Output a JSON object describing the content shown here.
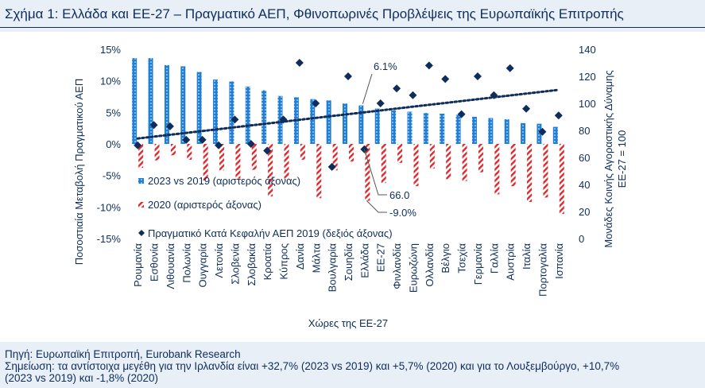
{
  "title": "Σχήμα 1: Ελλάδα και ΕΕ-27 – Πραγματικό ΑΕΠ, Φθινοπωρινές Προβλέψεις της Ευρωπαϊκής Επιτροπής",
  "footer": {
    "source": "Πηγή: Ευρωπαϊκή Επιτροπή, Eurobank Research",
    "note_line1": "Σημείωση: τα αντίστοιχα μεγέθη για την Ιρλανδία είναι +32,7% (2023 vs 2019) και +5,7% (2020) και για το Λουξεμβούργο, +10,7%",
    "note_line2": "(2023 vs 2019) και -1,8% (2020)"
  },
  "colors": {
    "bar_2023": "#1f7fd6",
    "bar_2020": "#e0282d",
    "marker": "#0e2d5a",
    "trend": "#0e2d5a"
  },
  "chart_data": {
    "type": "bar",
    "categories": [
      "Ρουμανία",
      "Εσθονία",
      "Λιθουανία",
      "Πολωνία",
      "Ουγγαρία",
      "Λετονία",
      "Σλοβενία",
      "Σλοβακία",
      "Κροατία",
      "Κύπρος",
      "Δανία",
      "Μάλτα",
      "Βουλγαρία",
      "Σουηδία",
      "Ελλάδα",
      "ΕΕ-27",
      "Φινλανδία",
      "Ευρωζώνη",
      "Ολλανδία",
      "Βέλγιο",
      "Τσεχία",
      "Γερμανία",
      "Γαλλία",
      "Αυστρία",
      "Ιταλία",
      "Πορτογαλία",
      "Ισπανία"
    ],
    "series": [
      {
        "name": "2023 vs 2019 (αριστερός άξονας)",
        "axis": "left",
        "values": [
          13.6,
          13.6,
          12.5,
          12.3,
          11.4,
          10.2,
          9.9,
          9.1,
          8.5,
          7.6,
          7.4,
          7.1,
          6.9,
          6.4,
          6.1,
          5.6,
          5.3,
          5.1,
          4.9,
          4.8,
          4.6,
          4.3,
          4.1,
          3.9,
          3.3,
          3.2,
          2.7
        ]
      },
      {
        "name": "2020 (αριστερός άξονας)",
        "axis": "left",
        "values": [
          -3.8,
          -2.6,
          -1.8,
          -2.5,
          -5.8,
          -4.2,
          -5.5,
          -4.1,
          -8.3,
          -5.5,
          -2.5,
          -8.6,
          -4.2,
          -2.8,
          -9.0,
          -6.2,
          -3.0,
          -6.7,
          -3.9,
          -5.6,
          -5.9,
          -4.5,
          -8.0,
          -6.7,
          -9.2,
          -8.5,
          -11.1
        ]
      },
      {
        "name": "Πραγματικό Κατά Κεφαλήν ΑΕΠ 2019 (δεξιός άξονας)",
        "axis": "right",
        "values": [
          69,
          84,
          83,
          73,
          73,
          69,
          88,
          70,
          65,
          88,
          130,
          100,
          53,
          120,
          66,
          100,
          111,
          106,
          128,
          118,
          92,
          120,
          106,
          126,
          96,
          79,
          91
        ]
      }
    ],
    "trendline": {
      "x_start": 1,
      "x_end": 27,
      "y_start": 74,
      "y_end": 110
    },
    "annotations": [
      {
        "category": "Ελλάδα",
        "series": "2023 vs 2019 (αριστερός άξονας)",
        "label": "6.1%"
      },
      {
        "category": "Ελλάδα",
        "series": "Πραγματικό Κατά Κεφαλήν ΑΕΠ 2019 (δεξιός άξονας)",
        "label": "66.0"
      },
      {
        "category": "Ελλάδα",
        "series": "2020 (αριστερός άξονας)",
        "label": "-9.0%"
      }
    ],
    "left_axis": {
      "label": "Ποσοστιαία Μεταβολή Πραγματικού ΑΕΠ",
      "ylim": [
        -15,
        15
      ],
      "ticks": [
        "15%",
        "10%",
        "5%",
        "0%",
        "-5%",
        "-10%",
        "-15%"
      ]
    },
    "right_axis": {
      "label_line1": "Μονάδες Κοινής Αγοραστικής Δύναμης",
      "label_line2": "ΕΕ-27 = 100",
      "ylim": [
        0,
        140
      ],
      "ticks": [
        "140",
        "120",
        "100",
        "80",
        "60",
        "40",
        "20",
        "0"
      ]
    },
    "xlabel": "Χώρες της ΕΕ-27",
    "legend": {
      "position": "bottom-left"
    }
  }
}
